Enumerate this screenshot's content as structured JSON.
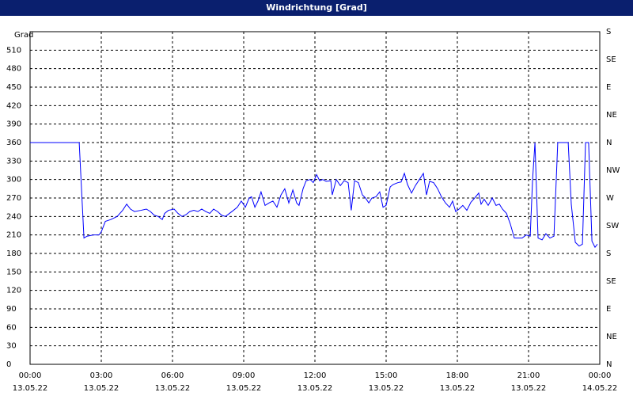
{
  "chart_data": {
    "type": "line",
    "title": "Windrichtung [Grad]",
    "y_label": "Grad",
    "x": [
      0,
      2.07,
      2.27,
      2.4,
      2.67,
      2.9,
      3.0,
      3.17,
      3.4,
      3.67,
      3.9,
      4.07,
      4.23,
      4.4,
      4.67,
      4.9,
      5.07,
      5.23,
      5.4,
      5.57,
      5.67,
      5.83,
      6.07,
      6.23,
      6.4,
      6.57,
      6.73,
      6.9,
      7.07,
      7.23,
      7.4,
      7.57,
      7.73,
      7.9,
      8.07,
      8.23,
      8.4,
      8.57,
      8.73,
      8.9,
      9.07,
      9.23,
      9.33,
      9.47,
      9.6,
      9.73,
      9.9,
      10.07,
      10.23,
      10.4,
      10.57,
      10.73,
      10.9,
      11.07,
      11.23,
      11.33,
      11.5,
      11.63,
      11.8,
      11.93,
      12.07,
      12.2,
      12.33,
      12.47,
      12.67,
      12.73,
      12.9,
      13.07,
      13.23,
      13.4,
      13.53,
      13.67,
      13.83,
      14.0,
      14.13,
      14.27,
      14.4,
      14.57,
      14.73,
      14.87,
      15.0,
      15.17,
      15.3,
      15.5,
      15.63,
      15.77,
      15.9,
      16.07,
      16.23,
      16.4,
      16.57,
      16.7,
      16.83,
      17.0,
      17.17,
      17.33,
      17.5,
      17.67,
      17.8,
      17.93,
      18.07,
      18.23,
      18.4,
      18.57,
      18.73,
      18.9,
      19.0,
      19.13,
      19.3,
      19.47,
      19.63,
      19.77,
      19.9,
      20.07,
      20.23,
      20.4,
      20.57,
      20.73,
      20.9,
      21.07,
      21.17,
      21.27,
      21.4,
      21.57,
      21.73,
      21.9,
      22.07,
      22.23,
      22.47,
      22.67,
      22.8,
      22.97,
      23.13,
      23.27,
      23.4,
      23.53,
      23.67,
      23.8,
      23.9
    ],
    "series": [
      {
        "name": "Windrichtung",
        "color": "#0000ff",
        "values": [
          360,
          360,
          205,
          208,
          210,
          210,
          215,
          232,
          235,
          240,
          250,
          260,
          252,
          248,
          250,
          252,
          248,
          242,
          240,
          235,
          245,
          250,
          252,
          245,
          240,
          243,
          248,
          250,
          248,
          252,
          248,
          245,
          252,
          248,
          242,
          240,
          245,
          250,
          255,
          265,
          255,
          270,
          272,
          255,
          265,
          280,
          258,
          262,
          265,
          255,
          275,
          285,
          262,
          283,
          262,
          258,
          285,
          298,
          300,
          295,
          308,
          298,
          300,
          297,
          298,
          275,
          300,
          290,
          298,
          295,
          250,
          298,
          295,
          275,
          270,
          262,
          270,
          272,
          280,
          255,
          258,
          288,
          292,
          295,
          296,
          310,
          292,
          278,
          290,
          300,
          310,
          275,
          297,
          295,
          285,
          272,
          262,
          255,
          265,
          248,
          252,
          258,
          250,
          263,
          270,
          278,
          260,
          268,
          258,
          270,
          258,
          260,
          252,
          245,
          228,
          205,
          205,
          205,
          210,
          208,
          300,
          360,
          205,
          202,
          212,
          205,
          208,
          360,
          360,
          360,
          260,
          198,
          192,
          195,
          360,
          360,
          200,
          190,
          195
        ]
      }
    ],
    "xlim": [
      0,
      24
    ],
    "xticks": [
      {
        "value": 0,
        "label": "00:00"
      },
      {
        "value": 3,
        "label": "03:00"
      },
      {
        "value": 6,
        "label": "06:00"
      },
      {
        "value": 9,
        "label": "09:00"
      },
      {
        "value": 12,
        "label": "12:00"
      },
      {
        "value": 15,
        "label": "15:00"
      },
      {
        "value": 18,
        "label": "18:00"
      },
      {
        "value": 21,
        "label": "21:00"
      },
      {
        "value": 24,
        "label": "00:00"
      }
    ],
    "xtick_dates": [
      "13.05.22",
      "13.05.22",
      "13.05.22",
      "13.05.22",
      "13.05.22",
      "13.05.22",
      "13.05.22",
      "13.05.22",
      "14.05.22"
    ],
    "ylim": [
      0,
      540
    ],
    "yticks": [
      0,
      30,
      60,
      90,
      120,
      150,
      180,
      210,
      240,
      270,
      300,
      330,
      360,
      390,
      420,
      450,
      480,
      510
    ],
    "y2lim": [
      0,
      540
    ],
    "y2ticks": [
      {
        "value": 0,
        "label": "N"
      },
      {
        "value": 45,
        "label": "NE"
      },
      {
        "value": 90,
        "label": "E"
      },
      {
        "value": 135,
        "label": "SE"
      },
      {
        "value": 180,
        "label": "S"
      },
      {
        "value": 225,
        "label": "SW"
      },
      {
        "value": 270,
        "label": "W"
      },
      {
        "value": 315,
        "label": "NW"
      },
      {
        "value": 360,
        "label": "N"
      },
      {
        "value": 405,
        "label": "NE"
      },
      {
        "value": 450,
        "label": "E"
      },
      {
        "value": 495,
        "label": "SE"
      },
      {
        "value": 540,
        "label": "S"
      }
    ],
    "grid": true
  }
}
